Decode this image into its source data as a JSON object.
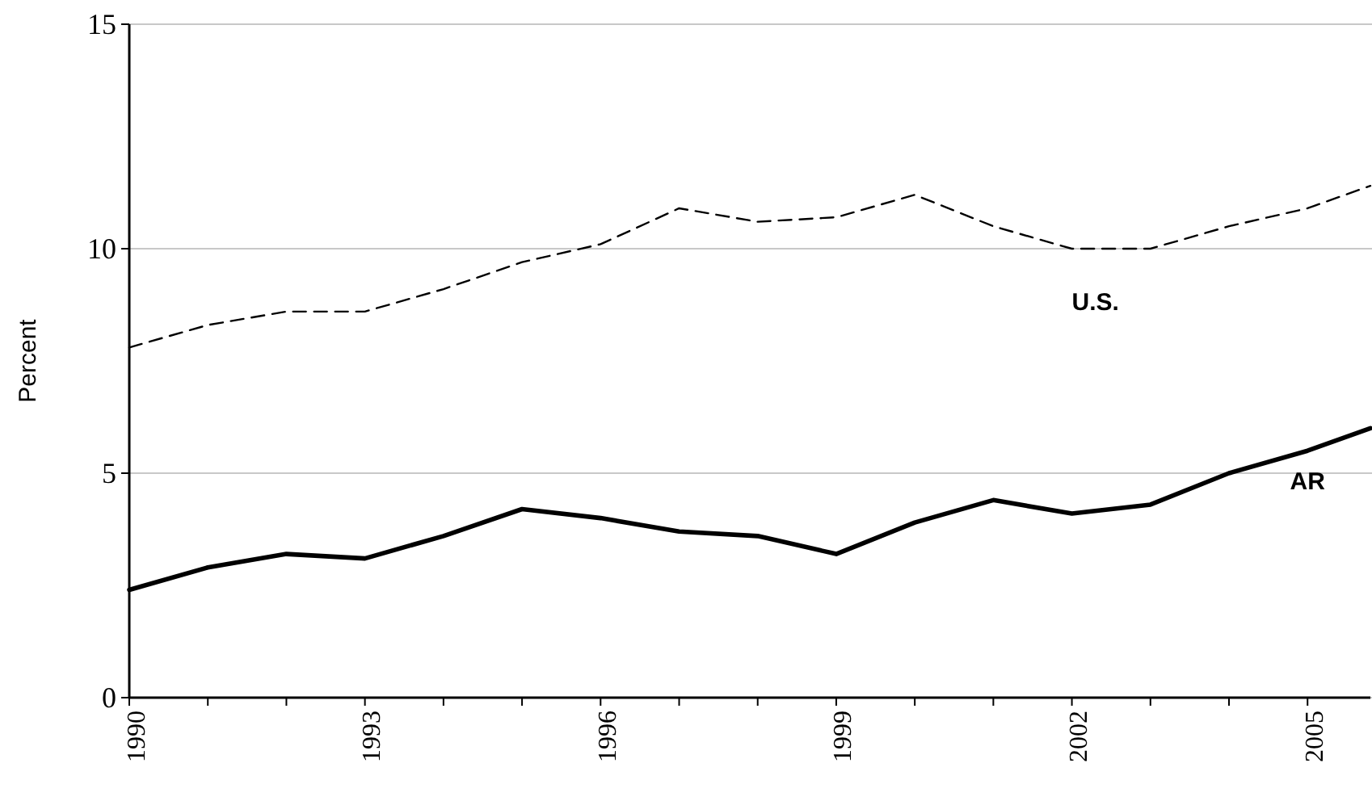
{
  "chart_data": {
    "type": "line",
    "ylabel": "Percent",
    "x": [
      1990,
      1991,
      1992,
      1993,
      1994,
      1995,
      1996,
      1997,
      1998,
      1999,
      2000,
      2001,
      2002,
      2003,
      2004,
      2005,
      2005.8
    ],
    "series": [
      {
        "name": "U.S.",
        "color": "#000000",
        "line_style": "dashed",
        "values": [
          7.8,
          8.3,
          8.6,
          8.6,
          9.1,
          9.7,
          10.1,
          10.9,
          10.6,
          10.7,
          11.2,
          10.5,
          10.0,
          10.0,
          10.5,
          10.9,
          11.4
        ]
      },
      {
        "name": "AR",
        "color": "#000000",
        "line_style": "solid",
        "values": [
          2.4,
          2.9,
          3.2,
          3.1,
          3.6,
          4.2,
          4.0,
          3.7,
          3.6,
          3.2,
          3.9,
          4.4,
          4.1,
          4.3,
          5.0,
          5.5,
          6.0
        ]
      }
    ],
    "xlim": [
      1990,
      2005.8
    ],
    "xticks": [
      1990,
      {
        "value": 1991,
        "label": null
      },
      {
        "value": 1992,
        "label": null
      },
      1993,
      {
        "value": 1994,
        "label": null
      },
      {
        "value": 1995,
        "label": null
      },
      1996,
      {
        "value": 1997,
        "label": null
      },
      {
        "value": 1998,
        "label": null
      },
      1999,
      {
        "value": 2000,
        "label": null
      },
      {
        "value": 2001,
        "label": null
      },
      2002,
      {
        "value": 2003,
        "label": null
      },
      {
        "value": 2004,
        "label": null
      },
      2005
    ],
    "ylim": [
      0,
      15
    ],
    "yticks": [
      0,
      5,
      10,
      15
    ],
    "grid": "y",
    "legend": false
  }
}
